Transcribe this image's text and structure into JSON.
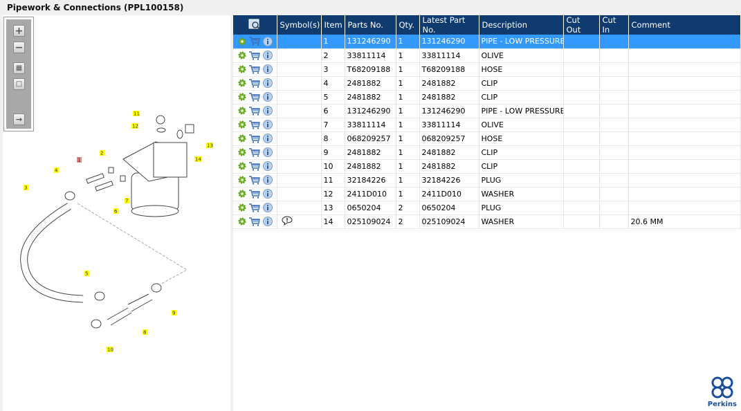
{
  "title": "Pipework & Connections (PPL100158)",
  "toolbar": {
    "buttons": [
      "zoom-in",
      "zoom-out",
      "fit-all",
      "fit-window",
      "export-to-list"
    ]
  },
  "diagram": {
    "callouts": [
      "11",
      "12",
      "13",
      "14",
      "2",
      "1",
      "4",
      "3",
      "6",
      "7",
      "5",
      "9",
      "8",
      "10"
    ],
    "highlighted_callout": "1",
    "callout_color": "#ffff00",
    "highlight_color": "#f08080"
  },
  "table": {
    "columns": [
      "",
      "Symbol(s)",
      "Item",
      "Parts No.",
      "Qty.",
      "Latest Part No.",
      "Description",
      "Cut Out",
      "Cut In",
      "Comment"
    ],
    "selected_row": 0,
    "rows": [
      {
        "symbol": "",
        "item": "1",
        "part": "131246290",
        "qty": "1",
        "latest": "131246290",
        "desc": "PIPE - LOW PRESSURE F",
        "cutout": "",
        "cutin": "",
        "comment": ""
      },
      {
        "symbol": "",
        "item": "2",
        "part": "33811114",
        "qty": "1",
        "latest": "33811114",
        "desc": "OLIVE",
        "cutout": "",
        "cutin": "",
        "comment": ""
      },
      {
        "symbol": "",
        "item": "3",
        "part": "T68209188",
        "qty": "1",
        "latest": "T68209188",
        "desc": "HOSE",
        "cutout": "",
        "cutin": "",
        "comment": ""
      },
      {
        "symbol": "",
        "item": "4",
        "part": "2481882",
        "qty": "1",
        "latest": "2481882",
        "desc": "CLIP",
        "cutout": "",
        "cutin": "",
        "comment": ""
      },
      {
        "symbol": "",
        "item": "5",
        "part": "2481882",
        "qty": "1",
        "latest": "2481882",
        "desc": "CLIP",
        "cutout": "",
        "cutin": "",
        "comment": ""
      },
      {
        "symbol": "",
        "item": "6",
        "part": "131246290",
        "qty": "1",
        "latest": "131246290",
        "desc": "PIPE - LOW PRESSURE F",
        "cutout": "",
        "cutin": "",
        "comment": ""
      },
      {
        "symbol": "",
        "item": "7",
        "part": "33811114",
        "qty": "1",
        "latest": "33811114",
        "desc": "OLIVE",
        "cutout": "",
        "cutin": "",
        "comment": ""
      },
      {
        "symbol": "",
        "item": "8",
        "part": "068209257",
        "qty": "1",
        "latest": "068209257",
        "desc": "HOSE",
        "cutout": "",
        "cutin": "",
        "comment": ""
      },
      {
        "symbol": "",
        "item": "9",
        "part": "2481882",
        "qty": "1",
        "latest": "2481882",
        "desc": "CLIP",
        "cutout": "",
        "cutin": "",
        "comment": ""
      },
      {
        "symbol": "",
        "item": "10",
        "part": "2481882",
        "qty": "1",
        "latest": "2481882",
        "desc": "CLIP",
        "cutout": "",
        "cutin": "",
        "comment": ""
      },
      {
        "symbol": "",
        "item": "11",
        "part": "32184226",
        "qty": "1",
        "latest": "32184226",
        "desc": "PLUG",
        "cutout": "",
        "cutin": "",
        "comment": ""
      },
      {
        "symbol": "",
        "item": "12",
        "part": "2411D010",
        "qty": "1",
        "latest": "2411D010",
        "desc": "WASHER",
        "cutout": "",
        "cutin": "",
        "comment": ""
      },
      {
        "symbol": "",
        "item": "13",
        "part": "0650204",
        "qty": "2",
        "latest": "0650204",
        "desc": "PLUG",
        "cutout": "",
        "cutin": "",
        "comment": ""
      },
      {
        "symbol": "comment-bubble",
        "item": "14",
        "part": "025109024",
        "qty": "2",
        "latest": "025109024",
        "desc": "WASHER",
        "cutout": "",
        "cutin": "",
        "comment": "20.6 MM"
      }
    ]
  },
  "logo": {
    "text": "Perkins",
    "color": "#1b4f9c"
  },
  "colors": {
    "header": "#0f3b6e",
    "selected": "#3399ff"
  }
}
